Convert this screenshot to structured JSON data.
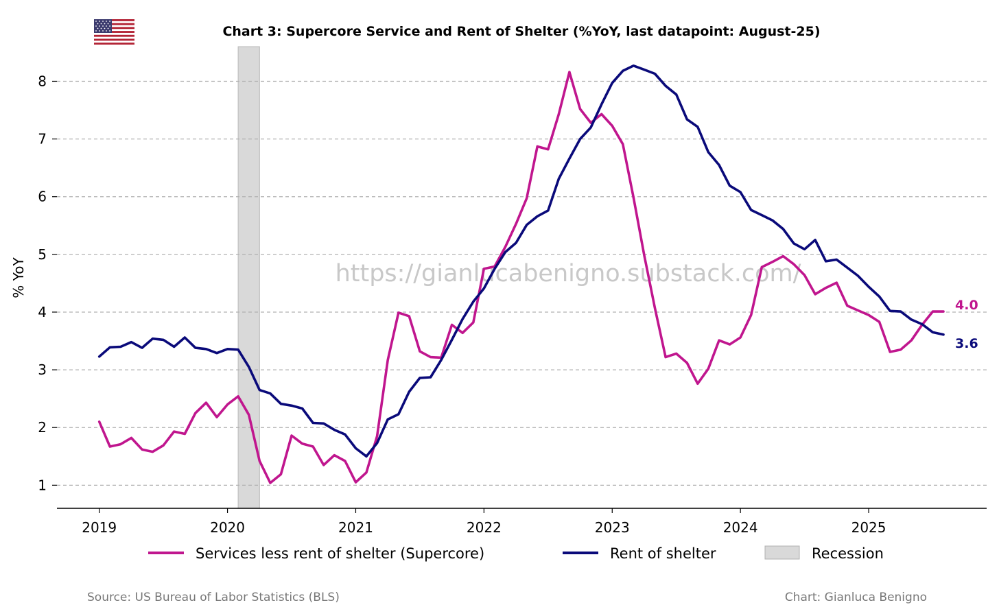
{
  "chart_data": {
    "type": "line",
    "title": "Chart 3: Supercore Service and Rent of Shelter (%YoY, last datapoint: August-25)",
    "ylabel": "% YoY",
    "xlabel": "",
    "ylim": [
      0.6,
      8.6
    ],
    "yticks": [
      1,
      2,
      3,
      4,
      5,
      6,
      7,
      8
    ],
    "xlim": [
      2018.67,
      2025.92
    ],
    "xticks": [
      2019,
      2020,
      2021,
      2022,
      2023,
      2024,
      2025
    ],
    "grid": "horizontal dashed",
    "legend_position": "bottom",
    "watermark": "https://gianlucabenigno.substack.com/",
    "recession": {
      "label": "Recession",
      "start": 2020.083,
      "end": 2020.25,
      "color": "#d9d9d9"
    },
    "series": [
      {
        "name": "Services less rent of shelter (Supercore)",
        "color": "#c0168e",
        "end_label": "4.0",
        "start": 2019.0,
        "step": 0.08333,
        "values": [
          2.1,
          1.67,
          1.71,
          1.82,
          1.62,
          1.58,
          1.69,
          1.93,
          1.89,
          2.25,
          2.43,
          2.18,
          2.4,
          2.54,
          2.22,
          1.42,
          1.04,
          1.19,
          1.86,
          1.72,
          1.67,
          1.35,
          1.52,
          1.42,
          1.05,
          1.22,
          1.85,
          3.17,
          3.99,
          3.93,
          3.32,
          3.22,
          3.21,
          3.78,
          3.64,
          3.82,
          4.75,
          4.79,
          5.13,
          5.53,
          5.97,
          6.87,
          6.82,
          7.43,
          8.16,
          7.52,
          7.28,
          7.43,
          7.23,
          6.91,
          5.98,
          4.98,
          4.07,
          3.22,
          3.28,
          3.12,
          2.76,
          3.02,
          3.51,
          3.44,
          3.56,
          3.95,
          4.78,
          4.87,
          4.97,
          4.83,
          4.64,
          4.31,
          4.42,
          4.51,
          4.11,
          4.03,
          3.95,
          3.83,
          3.31,
          3.35,
          3.51,
          3.78,
          4.01,
          4.01
        ]
      },
      {
        "name": "Rent of shelter",
        "color": "#0a0a7a",
        "end_label": "3.6",
        "start": 2019.0,
        "step": 0.08333,
        "values": [
          3.23,
          3.39,
          3.4,
          3.48,
          3.38,
          3.54,
          3.52,
          3.4,
          3.56,
          3.38,
          3.36,
          3.29,
          3.36,
          3.35,
          3.05,
          2.65,
          2.59,
          2.41,
          2.38,
          2.33,
          2.08,
          2.07,
          1.96,
          1.88,
          1.64,
          1.5,
          1.73,
          2.14,
          2.23,
          2.62,
          2.86,
          2.87,
          3.17,
          3.52,
          3.88,
          4.18,
          4.41,
          4.75,
          5.04,
          5.2,
          5.51,
          5.66,
          5.76,
          6.31,
          6.66,
          7.0,
          7.2,
          7.6,
          7.97,
          8.18,
          8.27,
          8.2,
          8.13,
          7.92,
          7.77,
          7.34,
          7.21,
          6.77,
          6.55,
          6.19,
          6.08,
          5.77,
          5.68,
          5.59,
          5.44,
          5.19,
          5.09,
          5.25,
          4.88,
          4.91,
          4.77,
          4.63,
          4.44,
          4.27,
          4.02,
          4.01,
          3.87,
          3.79,
          3.65,
          3.61
        ]
      }
    ]
  },
  "legend": {
    "supercore": "Services less rent of shelter (Supercore)",
    "shelter": "Rent of shelter",
    "recession": "Recession"
  },
  "footer": {
    "source": "Source: US Bureau of Labor Statistics (BLS)",
    "credit": "Chart: Gianluca Benigno"
  },
  "flag_icon": "us-flag-icon",
  "colors": {
    "supercore": "#c0168e",
    "shelter": "#0a0a7a",
    "recession": "#d9d9d9",
    "grid": "#b0b0b0"
  }
}
